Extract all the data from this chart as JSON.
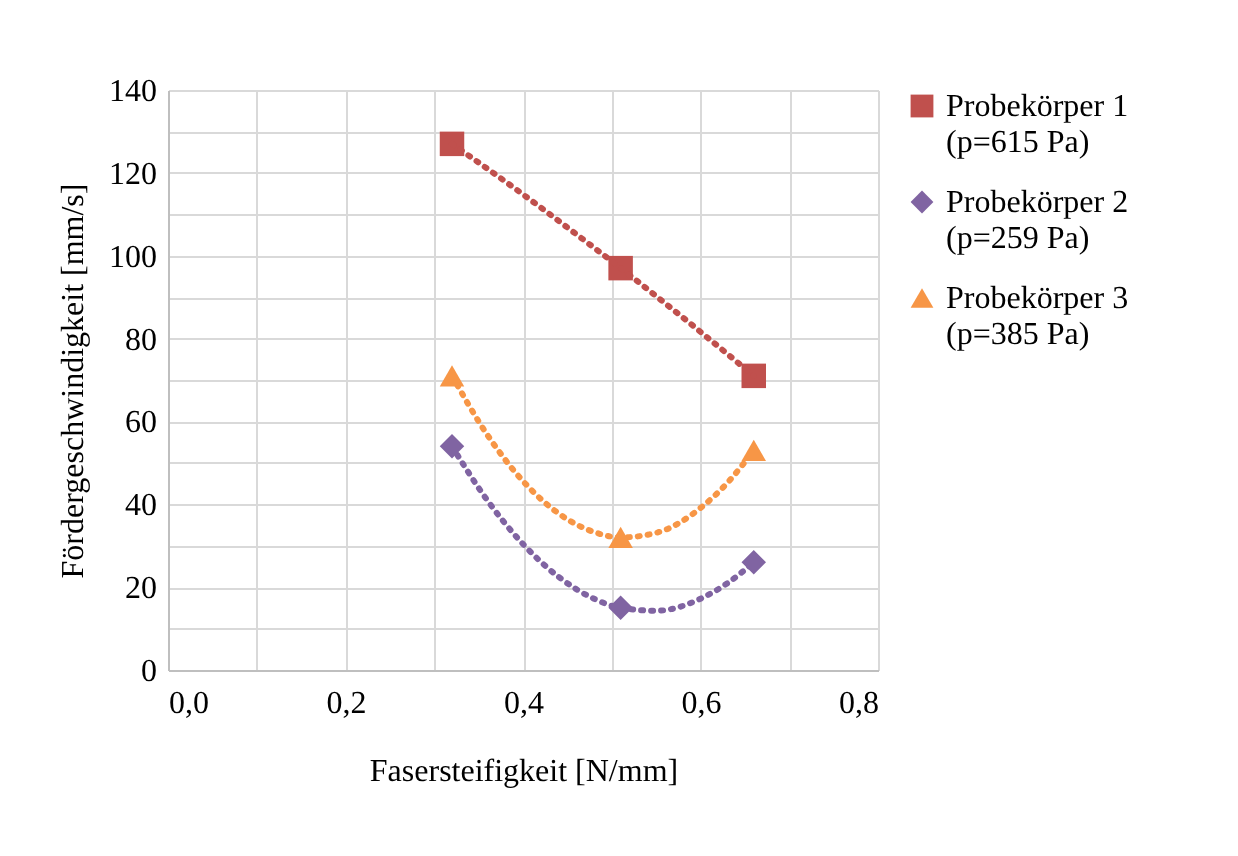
{
  "chart_data": {
    "type": "scatter",
    "xlabel": "Fasersteifigkeit [N/mm]",
    "ylabel": "Fördergeschwindigkeit [mm/s]",
    "xlim": [
      0,
      0.8
    ],
    "ylim": [
      0,
      140
    ],
    "xticks": [
      {
        "value": 0,
        "label": "0,0"
      },
      {
        "value": 0.1,
        "label": null
      },
      {
        "value": 0.2,
        "label": "0,2"
      },
      {
        "value": 0.3,
        "label": null
      },
      {
        "value": 0.4,
        "label": "0,4"
      },
      {
        "value": 0.5,
        "label": null
      },
      {
        "value": 0.6,
        "label": "0,6"
      },
      {
        "value": 0.7,
        "label": null
      },
      {
        "value": 0.8,
        "label": "0,8"
      }
    ],
    "yticks": [
      0,
      {
        "value": 10,
        "label": null
      },
      20,
      {
        "value": 30,
        "label": null
      },
      40,
      {
        "value": 50,
        "label": null
      },
      60,
      {
        "value": 70,
        "label": null
      },
      80,
      {
        "value": 90,
        "label": null
      },
      100,
      {
        "value": 110,
        "label": null
      },
      120,
      {
        "value": 130,
        "label": null
      },
      140
    ],
    "grid": true,
    "legend": "right",
    "x": [
      0.32,
      0.51,
      0.66
    ],
    "series": [
      {
        "name": "Probekörper 1\n(p=615 Pa)",
        "color": "#c0504d",
        "marker": "square",
        "values": [
          127,
          97,
          71
        ]
      },
      {
        "name": "Probekörper 2\n(p=259 Pa)",
        "color": "#8064a2",
        "marker": "diamond",
        "values": [
          54,
          15,
          26
        ]
      },
      {
        "name": "Probekörper 3\n(p=385 Pa)",
        "color": "#f79646",
        "marker": "triangle",
        "values": [
          71,
          32,
          53
        ]
      },
      {
        "type": "line",
        "color": "#c0504d",
        "marker": "none",
        "line_style": "dotted",
        "x": [
          0.32,
          0.4,
          0.45,
          0.51,
          0.58,
          0.66
        ],
        "values": [
          127,
          114.8,
          106.8,
          97,
          85.1,
          71
        ]
      },
      {
        "type": "line",
        "color": "#8064a2",
        "marker": "none",
        "line_style": "dotted",
        "x": [
          0.32,
          0.36,
          0.4,
          0.44,
          0.48,
          0.51,
          0.55,
          0.6,
          0.63,
          0.66
        ],
        "values": [
          54,
          40.9,
          30.4,
          22.5,
          17.2,
          15,
          14.3,
          17.2,
          20.9,
          26
        ]
      },
      {
        "type": "line",
        "color": "#f79646",
        "marker": "none",
        "line_style": "dotted",
        "x": [
          0.32,
          0.36,
          0.4,
          0.44,
          0.48,
          0.51,
          0.55,
          0.6,
          0.63,
          0.66
        ],
        "values": [
          71,
          56.7,
          45.6,
          37.8,
          33.3,
          32,
          33.1,
          39.1,
          45.1,
          53
        ]
      }
    ]
  }
}
